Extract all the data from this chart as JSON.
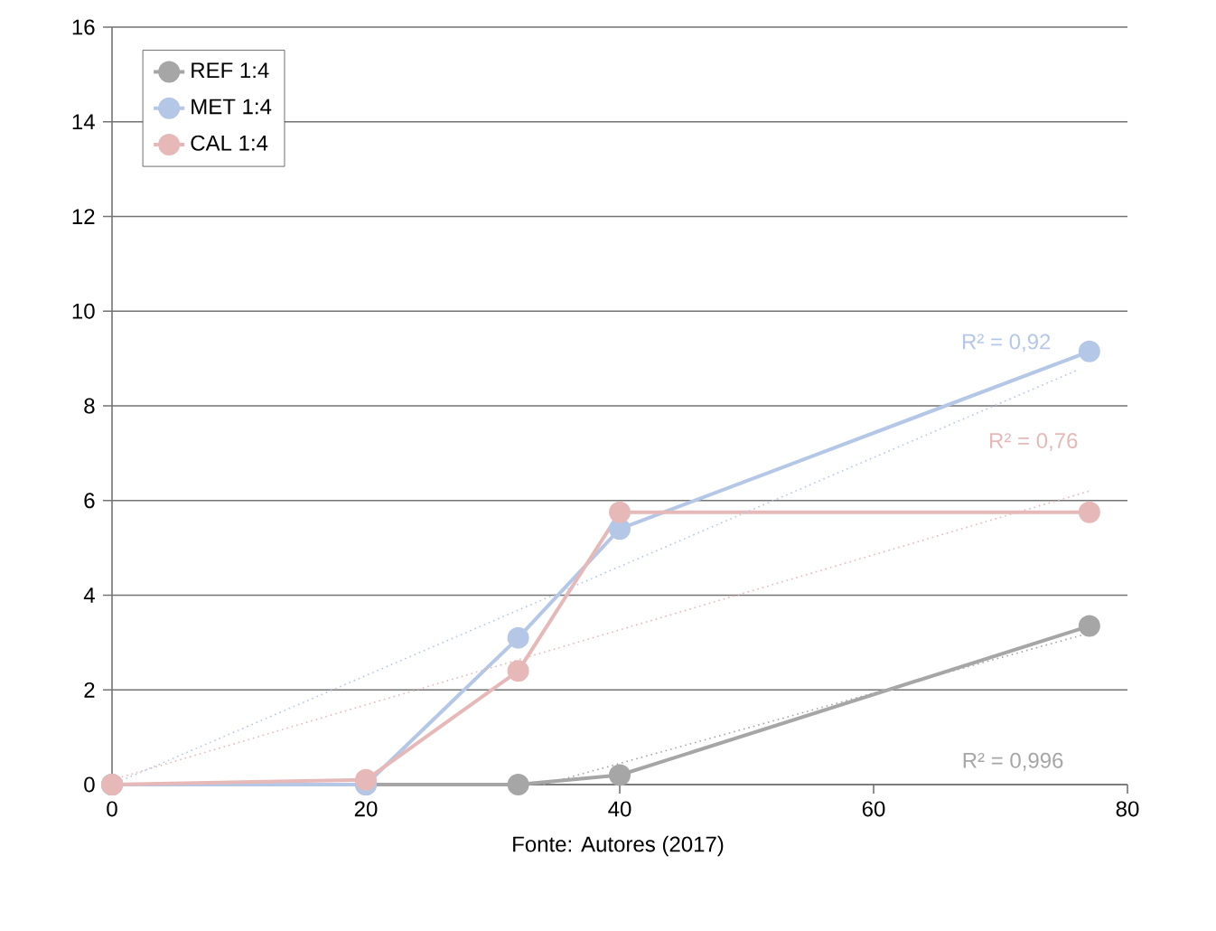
{
  "chart_data": {
    "type": "line",
    "xlim": [
      0,
      80
    ],
    "ylim": [
      0,
      16
    ],
    "xticks": [
      0,
      20,
      40,
      60,
      80
    ],
    "yticks": [
      0,
      2,
      4,
      6,
      8,
      10,
      12,
      14,
      16
    ],
    "grid": "y",
    "legend": "top left",
    "marker": "circle",
    "line_style": "solid",
    "x": [
      0,
      20,
      32,
      40,
      77
    ],
    "series": [
      {
        "name": "REF 1:4",
        "color": "#a6a6a6",
        "values": [
          0,
          0,
          0,
          0.2,
          3.35
        ]
      },
      {
        "name": "MET 1:4",
        "color": "#b4c7e7",
        "values": [
          0,
          0,
          3.1,
          5.4,
          9.15
        ]
      },
      {
        "name": "CAL 1:4",
        "color": "#e6b9b8",
        "values": [
          0,
          0.1,
          2.4,
          5.75,
          5.75
        ]
      },
      {
        "type": "line",
        "color": "#a6a6a6",
        "marker": "none",
        "line_style": "dotted",
        "x": [
          34,
          77
        ],
        "values": [
          0,
          3.2
        ]
      },
      {
        "type": "line",
        "color": "#b4c7e7",
        "marker": "none",
        "line_style": "dotted",
        "x": [
          0,
          76
        ],
        "values": [
          0,
          8.75
        ]
      },
      {
        "type": "line",
        "color": "#e6b9b8",
        "marker": "none",
        "line_style": "dotted",
        "x": [
          0,
          77
        ],
        "values": [
          0.1,
          6.2
        ]
      }
    ],
    "annotations": [
      "R² = 0,996",
      "R² = 0,92",
      "R² = 0,76",
      "Fonte: Autores (2017)"
    ]
  }
}
